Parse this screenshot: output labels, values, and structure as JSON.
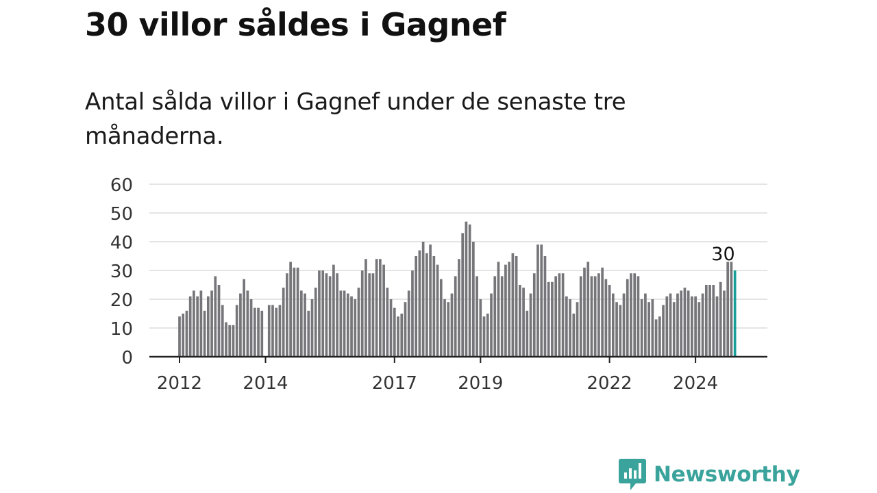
{
  "header": {
    "title": "30 villor såldes i Gagnef",
    "subtitle": "Antal sålda villor i Gagnef under de senaste tre månaderna."
  },
  "brand": {
    "name": "Newsworthy",
    "color": "#3aa39b"
  },
  "colors": {
    "bar": "#76757a",
    "highlight": "#1a9e98",
    "grid": "#dcdcdc",
    "axis": "#222222"
  },
  "chart_data": {
    "type": "bar",
    "title": "",
    "xlabel": "",
    "ylabel": "",
    "ylim": [
      0,
      60
    ],
    "yticks": [
      0,
      10,
      20,
      30,
      40,
      50,
      60
    ],
    "grid": true,
    "x_tick_labels": [
      "2012",
      "2014",
      "2017",
      "2019",
      "2022",
      "2024"
    ],
    "x_start": "2012-01",
    "frequency": "monthly",
    "values": [
      14,
      15,
      16,
      21,
      23,
      21,
      23,
      16,
      21,
      23,
      28,
      25,
      18,
      12,
      11,
      11,
      18,
      22,
      27,
      23,
      20,
      17,
      17,
      16,
      0,
      18,
      18,
      17,
      18,
      24,
      29,
      33,
      31,
      31,
      23,
      22,
      16,
      20,
      24,
      30,
      30,
      29,
      28,
      32,
      29,
      23,
      23,
      22,
      21,
      20,
      24,
      30,
      34,
      29,
      29,
      34,
      34,
      32,
      24,
      20,
      17,
      14,
      15,
      19,
      23,
      30,
      35,
      37,
      40,
      36,
      39,
      35,
      32,
      27,
      20,
      19,
      22,
      28,
      34,
      43,
      47,
      46,
      40,
      28,
      20,
      14,
      15,
      22,
      28,
      33,
      28,
      32,
      33,
      36,
      35,
      25,
      24,
      16,
      22,
      29,
      39,
      39,
      35,
      26,
      26,
      28,
      29,
      29,
      21,
      20,
      15,
      19,
      28,
      31,
      33,
      28,
      28,
      29,
      31,
      27,
      25,
      22,
      19,
      18,
      22,
      27,
      29,
      29,
      28,
      20,
      22,
      19,
      20,
      13,
      14,
      18,
      21,
      22,
      19,
      22,
      23,
      24,
      23,
      21,
      21,
      19,
      22,
      25,
      25,
      25,
      21,
      26,
      23,
      33,
      33,
      30
    ],
    "highlight_last": true,
    "last_value_label": "30"
  }
}
